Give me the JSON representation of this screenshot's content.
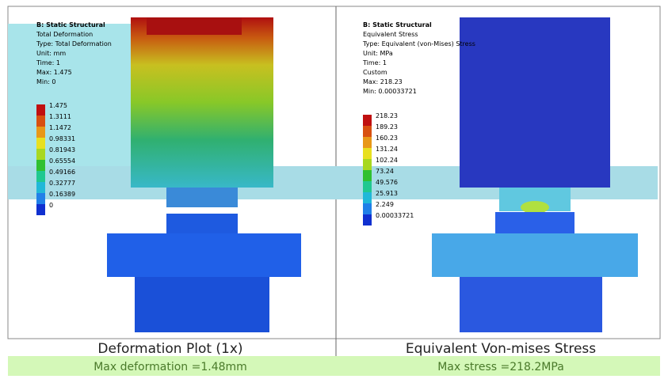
{
  "panels": [
    {
      "header": {
        "title": "B: Static Structural",
        "name": "Total Deformation",
        "lines": [
          "Type: Total Deformation",
          "Unit: mm",
          "Time: 1",
          "Max: 1.475",
          "Min: 0"
        ]
      },
      "legend": [
        "1.475",
        "1.3111",
        "1.1472",
        "0.98331",
        "0.81943",
        "0.65554",
        "0.49166",
        "0.32777",
        "0.16389",
        "0"
      ],
      "caption": "Deformation Plot (1x)",
      "result": "Max deformation =1.48mm"
    },
    {
      "header": {
        "title": "B: Static Structural",
        "name": "Equivalent Stress",
        "lines": [
          "Type: Equivalent (von-Mises) Stress",
          "Unit: MPa",
          "Time: 1",
          "Custom",
          "Max: 218.23",
          "Min: 0.00033721"
        ]
      },
      "legend": [
        "218.23",
        "189.23",
        "160.23",
        "131.24",
        "102.24",
        "73.24",
        "49.576",
        "25.913",
        "2.249",
        "0.00033721"
      ],
      "caption": "Equivalent Von-mises Stress",
      "result": "Max stress =218.2MPa"
    }
  ]
}
